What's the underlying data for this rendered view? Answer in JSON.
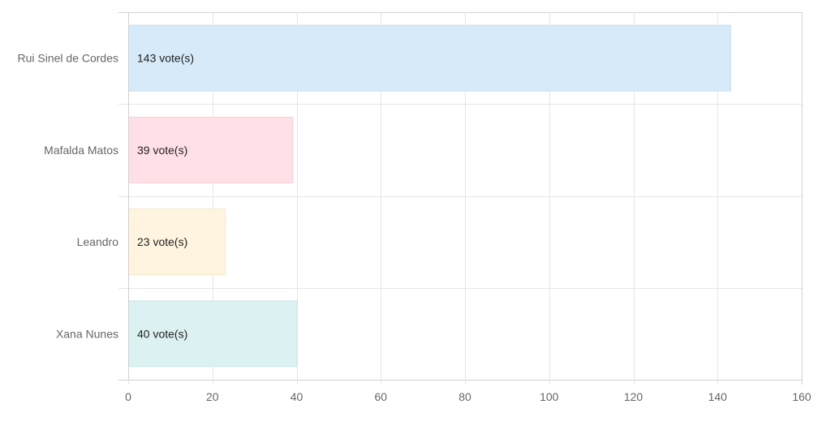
{
  "chart_data": {
    "type": "bar",
    "orientation": "horizontal",
    "title": "",
    "xlabel": "",
    "ylabel": "",
    "categories": [
      "Rui Sinel de Cordes",
      "Mafalda Matos",
      "Leandro",
      "Xana Nunes"
    ],
    "values": [
      143,
      39,
      23,
      40
    ],
    "data_labels": [
      "143 vote(s)",
      "39 vote(s)",
      "23 vote(s)",
      "40 vote(s)"
    ],
    "xlim": [
      0,
      160
    ],
    "x_ticks": [
      0,
      20,
      40,
      60,
      80,
      100,
      120,
      140,
      160
    ],
    "grid": true,
    "legend": "none",
    "bar_fill_colors": [
      "#d6eaf9",
      "#ffe0e6",
      "#fff4df",
      "#dcf1f1"
    ],
    "bar_border_colors": [
      "#c6def2",
      "#f6cfd7",
      "#f7e7c8",
      "#cce6e6"
    ]
  }
}
